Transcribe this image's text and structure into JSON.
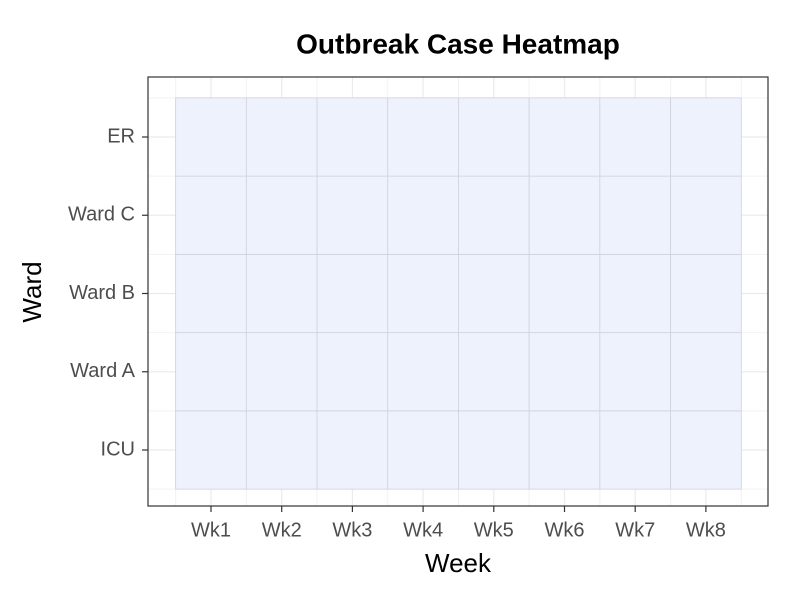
{
  "chart_data": {
    "type": "heatmap",
    "title": "Outbreak Case Heatmap",
    "x_label": "Week",
    "y_label": "Ward",
    "categories": [
      "Wk1",
      "Wk2",
      "Wk3",
      "Wk4",
      "Wk5",
      "Wk6",
      "Wk7",
      "Wk8"
    ],
    "y_categories": [
      "ICU",
      "Ward A",
      "Ward B",
      "Ward C",
      "ER"
    ],
    "values": [
      [
        0,
        0,
        0,
        0,
        0,
        0,
        0,
        0
      ],
      [
        0,
        0,
        0,
        0,
        0,
        0,
        0,
        0
      ],
      [
        0,
        0,
        0,
        0,
        0,
        0,
        0,
        0
      ],
      [
        0,
        0,
        0,
        0,
        0,
        0,
        0,
        0
      ],
      [
        0,
        0,
        0,
        0,
        0,
        0,
        0,
        0
      ]
    ],
    "color": "#eef2fd",
    "grid": true
  }
}
